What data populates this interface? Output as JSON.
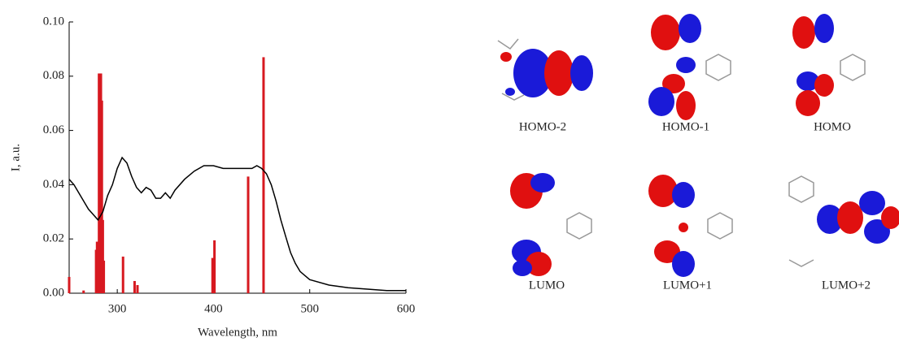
{
  "chart_data": {
    "type": "bar",
    "xlabel": "Wavelength, nm",
    "ylabel": "I, a.u.",
    "xlim": [
      250,
      600
    ],
    "ylim": [
      0,
      0.1
    ],
    "xticks": [
      300,
      400,
      500,
      600
    ],
    "yticks": [
      {
        "value": 0,
        "label": "0.00"
      },
      {
        "value": 0.02,
        "label": "0.02"
      },
      {
        "value": 0.04,
        "label": "0.04"
      },
      {
        "value": 0.06,
        "label": "0.06"
      },
      {
        "value": 0.08,
        "label": "0.08"
      },
      {
        "value": 0.1,
        "label": "0.10"
      }
    ],
    "series": [
      {
        "type": "bar",
        "color": "#d71920",
        "x": [
          250,
          265,
          278,
          279,
          281,
          283,
          284,
          285,
          286,
          306,
          318,
          321,
          399,
          401,
          436,
          452
        ],
        "values": [
          0.006,
          0.001,
          0.016,
          0.019,
          0.081,
          0.081,
          0.071,
          0.027,
          0.012,
          0.0135,
          0.0045,
          0.003,
          0.013,
          0.0195,
          0.043,
          0.087
        ]
      },
      {
        "type": "line",
        "color": "#000000",
        "x": [
          250,
          255,
          260,
          265,
          270,
          275,
          280,
          285,
          290,
          295,
          300,
          305,
          310,
          315,
          320,
          325,
          330,
          335,
          340,
          345,
          350,
          355,
          360,
          370,
          380,
          390,
          400,
          410,
          420,
          430,
          440,
          445,
          450,
          455,
          460,
          465,
          470,
          475,
          480,
          485,
          490,
          500,
          520,
          540,
          560,
          580,
          600
        ],
        "values": [
          0.042,
          0.04,
          0.037,
          0.034,
          0.031,
          0.029,
          0.027,
          0.03,
          0.036,
          0.04,
          0.046,
          0.05,
          0.048,
          0.043,
          0.039,
          0.037,
          0.039,
          0.038,
          0.035,
          0.035,
          0.037,
          0.035,
          0.038,
          0.042,
          0.045,
          0.047,
          0.047,
          0.046,
          0.046,
          0.046,
          0.046,
          0.047,
          0.046,
          0.044,
          0.04,
          0.034,
          0.027,
          0.021,
          0.015,
          0.011,
          0.008,
          0.005,
          0.003,
          0.002,
          0.0015,
          0.001,
          0.001
        ]
      }
    ]
  },
  "orbitals": {
    "labels": [
      "HOMO-2",
      "HOMO-1",
      "HOMO",
      "LUMO",
      "LUMO+1",
      "LUMO+2"
    ]
  }
}
